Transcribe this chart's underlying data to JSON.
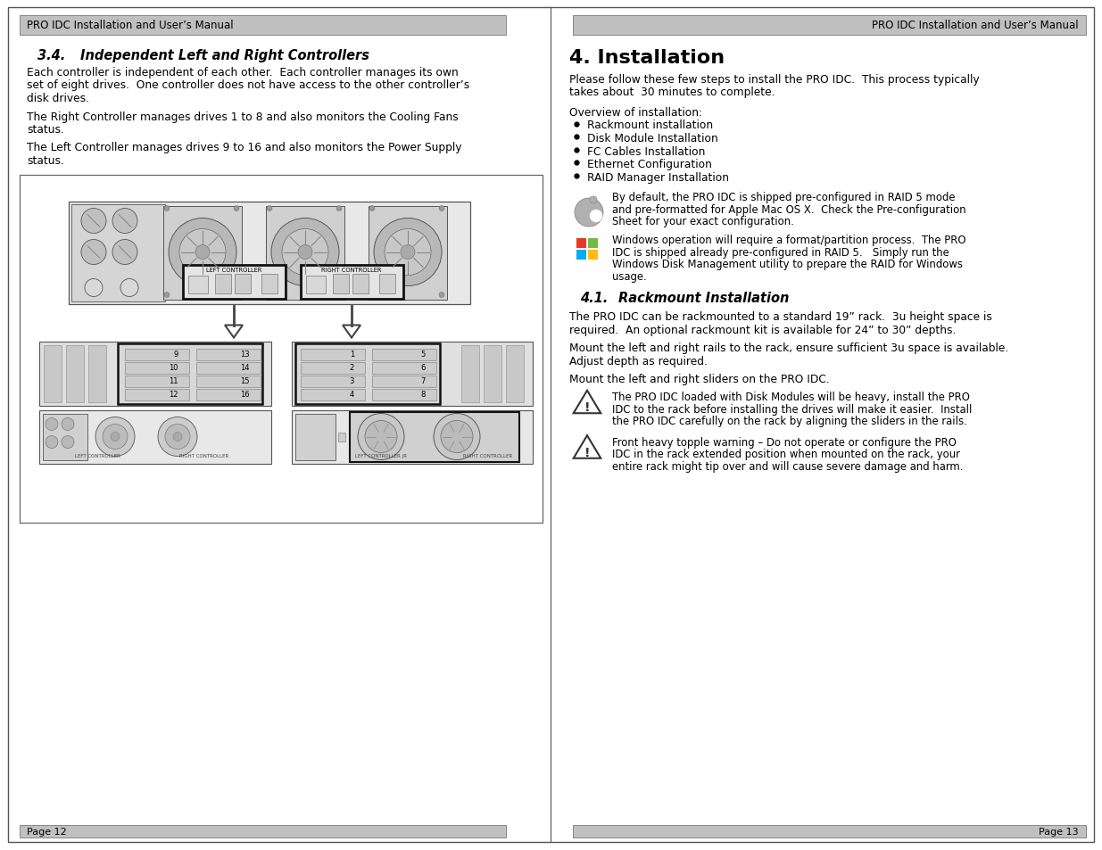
{
  "page_bg": "#ffffff",
  "header_bg": "#c0c0c0",
  "header_text_left": "PRO IDC Installation and User’s Manual",
  "header_text_right": "PRO IDC Installation and User’s Manual",
  "footer_text_left": "Page 12",
  "footer_text_right": "Page 13",
  "left_section_title": "3.4.",
  "left_section_heading": "Independent Left and Right Controllers",
  "left_para1": "Each controller is independent of each other.  Each controller manages its own\nset of eight drives.  One controller does not have access to the other controller’s\ndisk drives.",
  "left_para2": "The Right Controller manages drives 1 to 8 and also monitors the Cooling Fans\nstatus.",
  "left_para3": "The Left Controller manages drives 9 to 16 and also monitors the Power Supply\nstatus.",
  "right_section_title": "4. Installation",
  "right_para1": "Please follow these few steps to install the PRO IDC.  This process typically\ntakes about  30 minutes to complete.",
  "right_overview": "Overview of installation:",
  "right_bullets": [
    "Rackmount installation",
    "Disk Module Installation",
    "FC Cables Installation",
    "Ethernet Configuration",
    "RAID Manager Installation"
  ],
  "right_note1": "By default, the PRO IDC is shipped pre-configured in RAID 5 mode\nand pre-formatted for Apple Mac OS X.  Check the Pre-configuration\nSheet for your exact configuration.",
  "right_note2": "Windows operation will require a format/partition process.  The PRO\nIDC is shipped already pre-configured in RAID 5.   Simply run the\nWindows Disk Management utility to prepare the RAID for Windows\nusage.",
  "right_subsection_num": "4.1.",
  "right_subsection_heading": "Rackmount Installation",
  "right_para2": "The PRO IDC can be rackmounted to a standard 19” rack.  3u height space is\nrequired.  An optional rackmount kit is available for 24” to 30” depths.",
  "right_para3": "Mount the left and right rails to the rack, ensure sufficient 3u space is available.\nAdjust depth as required.",
  "right_para4": "Mount the left and right sliders on the PRO IDC.",
  "right_warn1": "The PRO IDC loaded with Disk Modules will be heavy, install the PRO\nIDC to the rack before installing the drives will make it easier.  Install\nthe PRO IDC carefully on the rack by aligning the sliders in the rails.",
  "right_warn2": "Front heavy topple warning – Do not operate or configure the PRO\nIDC in the rack extended position when mounted on the rack, your\nentire rack might tip over and will cause severe damage and harm.",
  "text_color": "#000000",
  "header_text_color": "#111111"
}
